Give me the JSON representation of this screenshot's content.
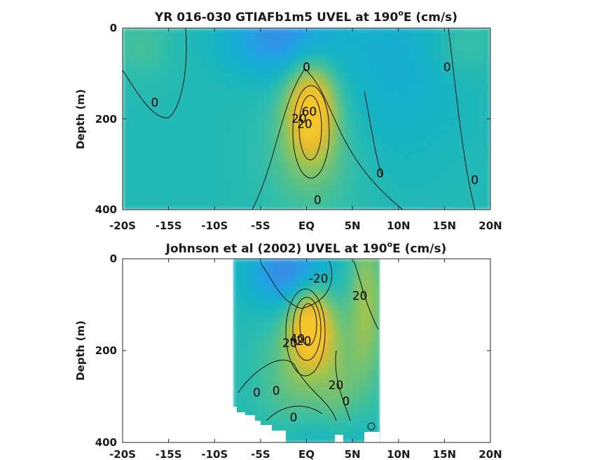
{
  "chart_data": [
    {
      "type": "heatmap",
      "title": "YR 016-030 GTIAFb1m5 UVEL at 190",
      "title_sup": "o",
      "title_suffix": "E (cm/s)",
      "xlabel": "",
      "ylabel": "Depth (m)",
      "xlim": [
        -20,
        20
      ],
      "ylim": [
        400,
        0
      ],
      "xticklabels": [
        "-20S",
        "-15S",
        "-10S",
        "-5S",
        "EQ",
        "5N",
        "10N",
        "15N",
        "20N"
      ],
      "yticklabels": [
        "0",
        "200",
        "400"
      ],
      "colormap": [
        "#3e86e8",
        "#1fa4e2",
        "#12b3c4",
        "#33bea8",
        "#6cc276",
        "#a8c448",
        "#e3b92e",
        "#f5c62c"
      ],
      "clim": [
        -40,
        70
      ],
      "field": [
        {
          "lon": -18,
          "depth": 40,
          "value": 12,
          "sx": 2.5,
          "sy": 50
        },
        {
          "lon": 17,
          "depth": 40,
          "value": 12,
          "sx": 2.5,
          "sy": 50
        },
        {
          "lon": -3,
          "depth": 20,
          "value": -35,
          "sx": 4,
          "sy": 60
        },
        {
          "lon": 10,
          "depth": 80,
          "value": -15,
          "sx": 5,
          "sy": 140
        },
        {
          "lon": 0.5,
          "depth": 180,
          "value": 75,
          "sx": 1.8,
          "sy": 70
        },
        {
          "lon": 0.5,
          "depth": 280,
          "value": 20,
          "sx": 3.5,
          "sy": 100
        }
      ],
      "contour_labels": [
        {
          "text": "0",
          "x": 0,
          "y": 86
        },
        {
          "text": "0",
          "x": -16.5,
          "y": 164
        },
        {
          "text": "60",
          "x": 0.3,
          "y": 184
        },
        {
          "text": "20",
          "x": -0.8,
          "y": 199
        },
        {
          "text": "20",
          "x": -0.2,
          "y": 211
        },
        {
          "text": "0",
          "x": 8,
          "y": 320
        },
        {
          "text": "0",
          "x": 15.3,
          "y": 86
        },
        {
          "text": "0",
          "x": 18.3,
          "y": 334
        },
        {
          "text": "0",
          "x": 1.2,
          "y": 378
        }
      ]
    },
    {
      "type": "heatmap",
      "title": "Johnson et al (2002) UVEL at 190",
      "title_sup": "o",
      "title_suffix": "E (cm/s)",
      "xlabel": "",
      "ylabel": "Depth (m)",
      "xlim": [
        -20,
        20
      ],
      "ylim": [
        400,
        0
      ],
      "data_lon_range": [
        -8,
        8
      ],
      "xticklabels": [
        "-20S",
        "-15S",
        "-10S",
        "-5S",
        "EQ",
        "5N",
        "10N",
        "15N",
        "20N"
      ],
      "yticklabels": [
        "0",
        "200",
        "400"
      ],
      "colormap": [
        "#3e86e8",
        "#1fa4e2",
        "#12b3c4",
        "#33bea8",
        "#6cc276",
        "#a8c448",
        "#e3b92e",
        "#f5c62c"
      ],
      "clim": [
        -40,
        70
      ],
      "field": [
        {
          "lon": -2,
          "depth": 30,
          "value": -40,
          "sx": 3,
          "sy": 55
        },
        {
          "lon": 6.5,
          "depth": 100,
          "value": 35,
          "sx": 1.3,
          "sy": 130
        },
        {
          "lon": 0.5,
          "depth": 150,
          "value": 75,
          "sx": 1.6,
          "sy": 60
        },
        {
          "lon": -1,
          "depth": 250,
          "value": 22,
          "sx": 3,
          "sy": 100
        },
        {
          "lon": 3.5,
          "depth": 260,
          "value": 18,
          "sx": 1.5,
          "sy": 100
        },
        {
          "lon": 2,
          "depth": 390,
          "value": -12,
          "sx": 4,
          "sy": 40
        }
      ],
      "contour_labels": [
        {
          "text": "-20",
          "x": 1.3,
          "y": 43
        },
        {
          "text": "20",
          "x": 5.8,
          "y": 80
        },
        {
          "text": "40",
          "x": -1.0,
          "y": 174
        },
        {
          "text": "20",
          "x": -1.8,
          "y": 183
        },
        {
          "text": "20",
          "x": -0.3,
          "y": 179
        },
        {
          "text": "20",
          "x": 3.2,
          "y": 275
        },
        {
          "text": "0",
          "x": -5.4,
          "y": 291
        },
        {
          "text": "0",
          "x": -3.3,
          "y": 287
        },
        {
          "text": "0",
          "x": 4.3,
          "y": 310
        },
        {
          "text": "0",
          "x": -1.4,
          "y": 345
        }
      ]
    }
  ]
}
